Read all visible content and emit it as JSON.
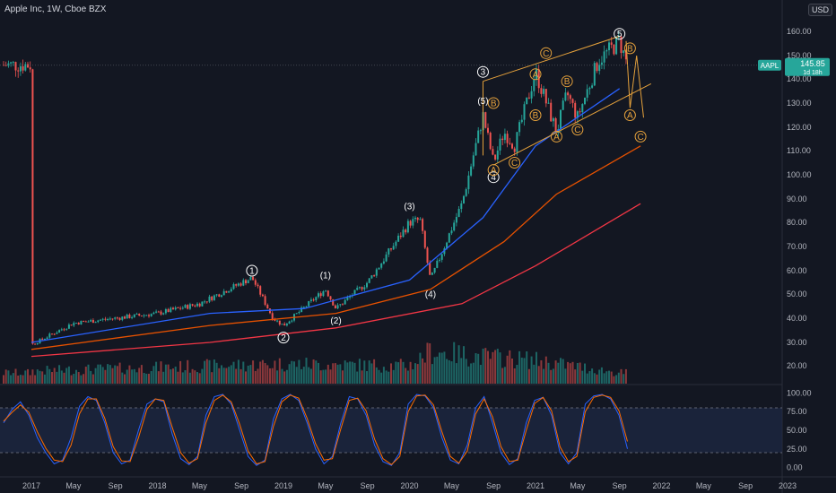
{
  "header": {
    "title": "Apple Inc, 1W, Cboe BZX",
    "currency": "USD"
  },
  "price_tag": {
    "symbol": "AAPL",
    "price": "145.85",
    "countdown": "1d 18h"
  },
  "colors": {
    "up": "#26a69a",
    "down": "#ef5350",
    "sma50": "#2962ff",
    "sma100": "#e65100",
    "sma200": "#f23645",
    "wave": "#e6a23c",
    "stoch_k": "#2962ff",
    "stoch_d": "#ff6d00"
  },
  "chart_data": [
    {
      "type": "candlestick",
      "title": "Apple Inc, 1W, Cboe BZX",
      "ylim": [
        15,
        170
      ],
      "y_ticks": [
        "20.00",
        "30.00",
        "40.00",
        "50.00",
        "60.00",
        "70.00",
        "80.00",
        "90.00",
        "100.00",
        "110.00",
        "120.00",
        "130.00",
        "140.00",
        "150.00",
        "160.00"
      ],
      "x_ticks": [
        "2017",
        "May",
        "Sep",
        "2018",
        "May",
        "Sep",
        "2019",
        "May",
        "Sep",
        "2020",
        "May",
        "Sep",
        "2021",
        "May",
        "Sep",
        "2022",
        "May",
        "Sep",
        "2023"
      ],
      "price_anchors": [
        [
          "2017-01",
          29
        ],
        [
          "2017-05",
          38
        ],
        [
          "2017-09",
          40
        ],
        [
          "2018-01",
          42
        ],
        [
          "2018-05",
          46
        ],
        [
          "2018-10",
          57
        ],
        [
          "2018-12",
          40
        ],
        [
          "2019-01",
          37
        ],
        [
          "2019-05",
          52
        ],
        [
          "2019-06",
          44
        ],
        [
          "2019-09",
          55
        ],
        [
          "2020-01",
          80
        ],
        [
          "2020-02",
          81
        ],
        [
          "2020-03",
          56
        ],
        [
          "2020-06",
          88
        ],
        [
          "2020-08",
          125
        ],
        [
          "2020-09",
          105
        ],
        [
          "2020-10",
          118
        ],
        [
          "2020-11",
          112
        ],
        [
          "2021-01",
          143
        ],
        [
          "2021-03",
          118
        ],
        [
          "2021-04",
          134
        ],
        [
          "2021-05",
          124
        ],
        [
          "2021-07",
          148
        ],
        [
          "2021-09",
          156
        ],
        [
          "2021-09-24",
          146
        ]
      ],
      "moving_averages": [
        {
          "name": "",
          "color": "#2962ff",
          "points": [
            [
              "2017-01",
              30
            ],
            [
              "2018-06",
              42
            ],
            [
              "2019-03",
              44
            ],
            [
              "2020-01",
              56
            ],
            [
              "2020-08",
              82
            ],
            [
              "2021-01",
              112
            ],
            [
              "2021-09",
              136
            ]
          ]
        },
        {
          "name": "",
          "color": "#e65100",
          "points": [
            [
              "2017-01",
              27
            ],
            [
              "2018-06",
              37
            ],
            [
              "2019-06",
              42
            ],
            [
              "2020-03",
              52
            ],
            [
              "2020-10",
              72
            ],
            [
              "2021-03",
              92
            ],
            [
              "2021-11",
              112
            ]
          ]
        },
        {
          "name": "",
          "color": "#f23645",
          "points": [
            [
              "2017-01",
              24
            ],
            [
              "2018-06",
              30
            ],
            [
              "2019-06",
              36
            ],
            [
              "2020-06",
              46
            ],
            [
              "2021-01",
              62
            ],
            [
              "2021-11",
              88
            ]
          ]
        }
      ],
      "wave_labels": [
        {
          "label": "1",
          "x": "2018-10",
          "y": 60
        },
        {
          "label": "2",
          "x": "2019-01",
          "y": 32
        },
        {
          "label": "(1)",
          "x": "2019-05",
          "y": 58
        },
        {
          "label": "(2)",
          "x": "2019-06",
          "y": 39
        },
        {
          "label": "(3)",
          "x": "2020-01",
          "y": 87
        },
        {
          "label": "(4)",
          "x": "2020-03",
          "y": 50
        },
        {
          "label": "(5)",
          "x": "2020-08",
          "y": 131
        },
        {
          "label": "3",
          "x": "2020-08",
          "y": 143
        },
        {
          "label": "4",
          "x": "2020-09",
          "y": 99
        },
        {
          "label": "A",
          "x": "2020-09",
          "y": 102
        },
        {
          "label": "B",
          "x": "2020-09",
          "y": 130
        },
        {
          "label": "C",
          "x": "2020-11",
          "y": 105
        },
        {
          "label": "A",
          "x": "2021-01",
          "y": 142
        },
        {
          "label": "B",
          "x": "2021-01",
          "y": 125
        },
        {
          "label": "C",
          "x": "2021-02",
          "y": 151
        },
        {
          "label": "B",
          "x": "2021-04",
          "y": 139
        },
        {
          "label": "A",
          "x": "2021-03",
          "y": 116
        },
        {
          "label": "C",
          "x": "2021-05",
          "y": 119
        },
        {
          "label": "5",
          "x": "2021-09",
          "y": 159
        },
        {
          "label": "B",
          "x": "2021-10",
          "y": 153
        },
        {
          "label": "A",
          "x": "2021-10",
          "y": 125
        },
        {
          "label": "C",
          "x": "2021-11",
          "y": 116
        }
      ],
      "volume": {
        "baseline": 8,
        "anchors": [
          [
            "2017-01",
            14
          ],
          [
            "2018-01",
            18
          ],
          [
            "2019-01",
            22
          ],
          [
            "2020-01",
            20
          ],
          [
            "2020-03",
            36
          ],
          [
            "2020-08",
            30
          ],
          [
            "2021-01",
            26
          ],
          [
            "2021-09",
            12
          ]
        ]
      }
    },
    {
      "type": "line",
      "title": "",
      "ylim": [
        -10,
        110
      ],
      "y_ticks": [
        "100.00",
        "75.00",
        "50.00",
        "25.00",
        "0.00"
      ],
      "bands": [
        20,
        80
      ],
      "series": [
        {
          "name": "",
          "color": "#2962ff",
          "values": [
            60,
            78,
            88,
            70,
            40,
            20,
            5,
            10,
            40,
            82,
            95,
            90,
            60,
            20,
            5,
            10,
            50,
            85,
            92,
            88,
            45,
            12,
            4,
            15,
            70,
            95,
            98,
            85,
            50,
            15,
            3,
            10,
            65,
            92,
            98,
            90,
            60,
            25,
            5,
            15,
            60,
            95,
            92,
            70,
            30,
            8,
            3,
            20,
            85,
            98,
            96,
            80,
            40,
            10,
            5,
            30,
            80,
            95,
            60,
            20,
            4,
            12,
            60,
            90,
            94,
            70,
            20,
            5,
            20,
            85,
            96,
            98,
            92,
            70,
            25
          ]
        },
        {
          "name": "",
          "color": "#ff6d00",
          "values": [
            62,
            74,
            84,
            74,
            48,
            26,
            10,
            8,
            30,
            72,
            92,
            92,
            66,
            28,
            9,
            8,
            40,
            78,
            92,
            90,
            54,
            20,
            6,
            12,
            60,
            90,
            97,
            88,
            58,
            22,
            5,
            8,
            55,
            88,
            97,
            93,
            66,
            32,
            10,
            12,
            52,
            90,
            93,
            76,
            38,
            12,
            4,
            15,
            75,
            96,
            97,
            84,
            48,
            15,
            6,
            22,
            72,
            92,
            68,
            28,
            8,
            10,
            50,
            86,
            94,
            76,
            28,
            8,
            15,
            75,
            94,
            97,
            94,
            76,
            35
          ]
        }
      ]
    }
  ]
}
